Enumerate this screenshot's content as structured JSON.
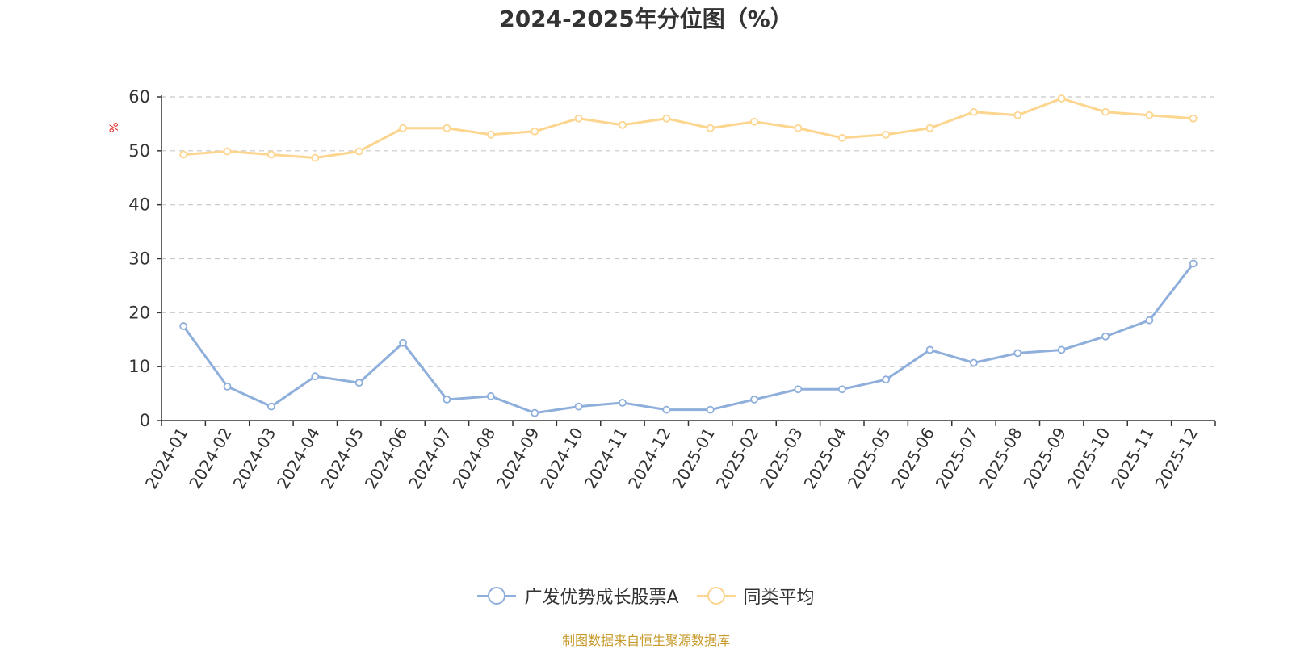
{
  "chart_data": {
    "type": "line",
    "title": "2024-2025年分位图（%）",
    "ylabel": "%",
    "xlabel": "",
    "ylim": [
      0,
      60
    ],
    "yticks": [
      0,
      10,
      20,
      30,
      40,
      50,
      60
    ],
    "grid": true,
    "legend_position": "bottom-center",
    "categories": [
      "2024-01",
      "2024-02",
      "2024-03",
      "2024-04",
      "2024-05",
      "2024-06",
      "2024-07",
      "2024-08",
      "2024-09",
      "2024-10",
      "2024-11",
      "2024-12",
      "2025-01",
      "2025-02",
      "2025-03",
      "2025-04",
      "2025-05",
      "2025-06",
      "2025-07",
      "2025-08",
      "2025-09",
      "2025-10",
      "2025-11",
      "2025-12"
    ],
    "series": [
      {
        "name": "广发优势成长股票A",
        "color": "#8eaedb",
        "values": [
          17.5,
          6.3,
          2.6,
          8.2,
          7.0,
          14.4,
          3.9,
          4.5,
          1.4,
          2.6,
          3.3,
          2.0,
          2.0,
          3.9,
          5.8,
          5.8,
          7.6,
          13.1,
          10.7,
          12.5,
          13.1,
          15.6,
          18.6,
          29.1
        ]
      },
      {
        "name": "同类平均",
        "color": "#fcd58f",
        "values": [
          49.3,
          49.9,
          49.3,
          48.7,
          49.9,
          54.2,
          54.2,
          53.0,
          53.6,
          56.0,
          54.8,
          56.0,
          54.2,
          55.4,
          54.2,
          52.4,
          53.0,
          54.2,
          57.2,
          56.6,
          59.7,
          57.2,
          56.6,
          56.0
        ]
      }
    ]
  },
  "footer": {
    "source_note": "制图数据来自恒生聚源数据库"
  }
}
